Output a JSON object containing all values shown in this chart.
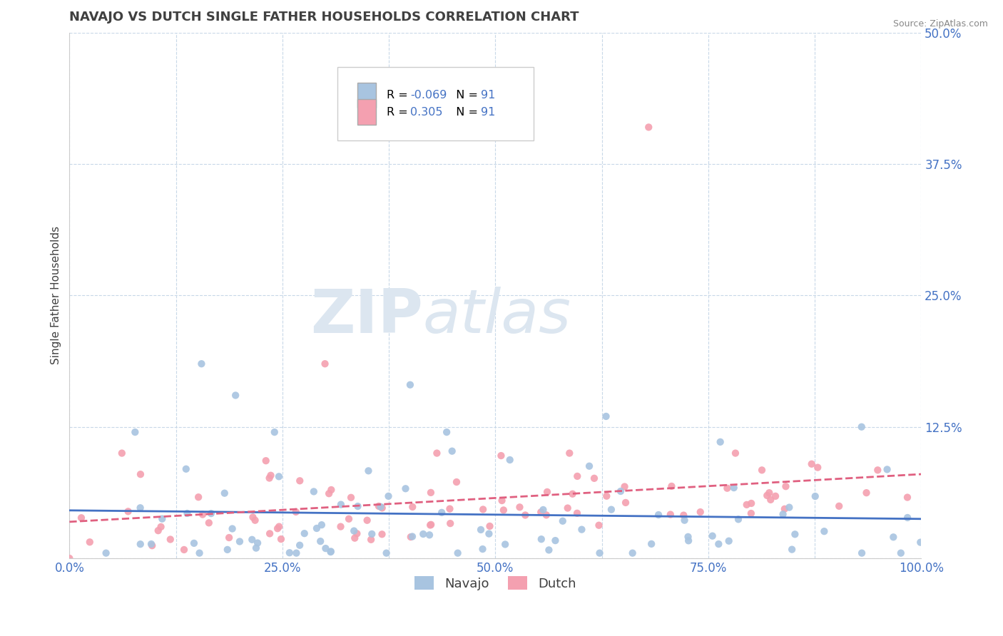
{
  "title": "NAVAJO VS DUTCH SINGLE FATHER HOUSEHOLDS CORRELATION CHART",
  "source": "Source: ZipAtlas.com",
  "ylabel_label": "Single Father Households",
  "x_ticks": [
    0.0,
    0.125,
    0.25,
    0.375,
    0.5,
    0.625,
    0.75,
    0.875,
    1.0
  ],
  "y_ticks": [
    0.0,
    0.125,
    0.25,
    0.375,
    0.5
  ],
  "y_tick_labels": [
    "",
    "12.5%",
    "25.0%",
    "37.5%",
    "50.0%"
  ],
  "xlim": [
    0.0,
    1.0
  ],
  "ylim": [
    0.0,
    0.5
  ],
  "navajo_R": "-0.069",
  "dutch_R": "0.305",
  "N": "91",
  "navajo_color": "#a8c4e0",
  "dutch_color": "#f4a0b0",
  "navajo_line_color": "#4472c4",
  "dutch_line_color": "#e06080",
  "grid_color": "#c8d8e8",
  "tick_color": "#4472c4",
  "title_color": "#404040",
  "source_color": "#888888",
  "ylabel_color": "#404040",
  "watermark_text": "ZIPatlas",
  "watermark_color": "#dce6f0",
  "legend_navajo_label": "Navajo",
  "legend_dutch_label": "Dutch"
}
